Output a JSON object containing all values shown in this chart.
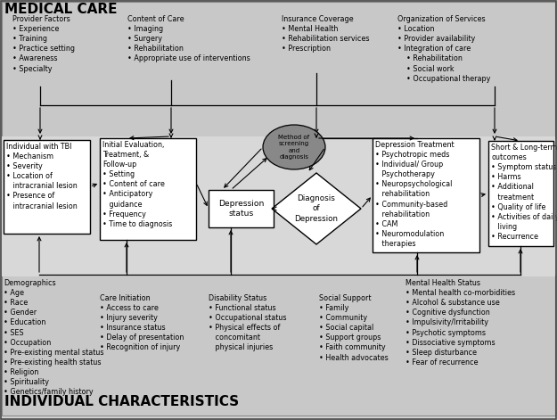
{
  "bg_color": "#d4d4d4",
  "box_color": "#ffffff",
  "title_top": "MEDICAL CARE",
  "title_bottom": "INDIVIDUAL CHARACTERISTICS",
  "provider_factors": "Provider Factors\n• Experience\n• Training\n• Practice setting\n• Awareness\n• Specialty",
  "content_of_care": "Content of Care\n• Imaging\n• Surgery\n• Rehabilitation\n• Appropriate use of interventions",
  "insurance_coverage": "Insurance Coverage\n• Mental Health\n• Rehabilitation services\n• Prescription",
  "org_of_services": "Organization of Services\n• Location\n• Provider availability\n• Integration of care\n    • Rehabilitation\n    • Social work\n    • Occupational therapy",
  "individual_tbi": "Individual with TBI\n• Mechanism\n• Severity\n• Location of\n   intracranial lesion\n• Presence of\n   intracranial lesion",
  "initial_eval": "Initial Evaluation,\nTreatment, &\nFollow-up\n• Setting\n• Content of care\n• Anticipatory\n   guidance\n• Frequency\n• Time to diagnosis",
  "depression_status": "Depression\nstatus",
  "diagnosis": "Diagnosis\nof\nDepression",
  "method_screening": "Method of\nscreening\nand\ndiagnosis",
  "depression_treatment": "Depression Treatment\n• Psychotropic meds\n• Individual/ Group\n   Psychotherapy\n• Neuropsychological\n   rehabilitation\n• Community-based\n   rehabilitation\n• CAM\n• Neuromodulation\n   therapies",
  "short_long_outcomes": "Short & Long-term\noutcomes\n• Symptom status\n• Harms\n• Additional\n   treatment\n• Quality of life\n• Activities of daily\n   living\n• Recurrence",
  "demographics": "Demographics\n• Age\n• Race\n• Gender\n• Education\n• SES\n• Occupation\n• Pre-existing mental status\n• Pre-existing health status\n• Religion\n• Spirituality\n• Genetics/family history",
  "care_initiation": "Care Initiation\n• Access to care\n• Injury severity\n• Insurance status\n• Delay of presentation\n• Recognition of injury",
  "disability_status": "Disability Status\n• Functional status\n• Occupational status\n• Physical effects of\n   concomitant\n   physical injuries",
  "social_support": "Social Support\n• Family\n• Community\n• Social capital\n• Support groups\n• Faith community\n• Health advocates",
  "mental_health_status": "Mental Health Status\n• Mental health co-morbidities\n• Alcohol & substance use\n• Cognitive dysfunction\n• Impulsivity/Irritability\n• Psychotic symptoms\n• Dissociative symptoms\n• Sleep disturbance\n• Fear of recurrence"
}
